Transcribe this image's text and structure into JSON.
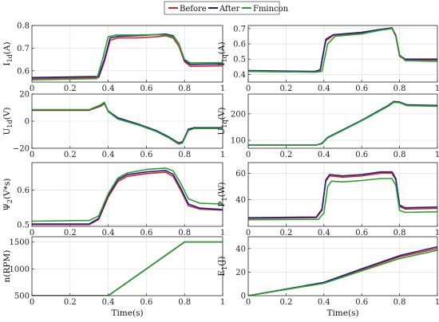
{
  "legend": {
    "placement": "top-center",
    "entries": [
      {
        "name": "Before",
        "color": "#d62728"
      },
      {
        "name": "After",
        "color": "#1f1f8f"
      },
      {
        "name": "Fmincon",
        "color": "#2ca02c"
      }
    ]
  },
  "chart_data": [
    {
      "id": "i1d",
      "type": "line",
      "title": "",
      "ylabel": "I",
      "ylabel_sub": "1d",
      "ylabel_unit": "(A)",
      "xlabel": "",
      "xlim": [
        0,
        1
      ],
      "ylim": [
        0.55,
        0.8
      ],
      "xticks": [
        "0",
        "0.2",
        "0.4",
        "0.6",
        "0.8",
        "1"
      ],
      "yticks": [
        {
          "v": 0.6,
          "t": "0.6"
        },
        {
          "v": 0.7,
          "t": "0.7"
        },
        {
          "v": 0.8,
          "t": "0.8"
        }
      ],
      "grid": true,
      "series": [
        {
          "name": "Before",
          "x": [
            0,
            0.35,
            0.38,
            0.41,
            0.45,
            0.55,
            0.65,
            0.7,
            0.74,
            0.77,
            0.8,
            0.83,
            1
          ],
          "y": [
            0.565,
            0.57,
            0.64,
            0.735,
            0.745,
            0.745,
            0.75,
            0.755,
            0.745,
            0.71,
            0.64,
            0.62,
            0.622
          ]
        },
        {
          "name": "After",
          "x": [
            0,
            0.35,
            0.38,
            0.41,
            0.45,
            0.55,
            0.65,
            0.7,
            0.74,
            0.77,
            0.8,
            0.83,
            1
          ],
          "y": [
            0.57,
            0.575,
            0.65,
            0.745,
            0.752,
            0.755,
            0.76,
            0.762,
            0.755,
            0.72,
            0.645,
            0.628,
            0.63
          ]
        },
        {
          "name": "Fmincon",
          "x": [
            0,
            0.34,
            0.37,
            0.4,
            0.44,
            0.55,
            0.65,
            0.7,
            0.74,
            0.77,
            0.8,
            0.83,
            1
          ],
          "y": [
            0.56,
            0.565,
            0.65,
            0.75,
            0.758,
            0.758,
            0.76,
            0.758,
            0.75,
            0.72,
            0.65,
            0.635,
            0.636
          ]
        }
      ]
    },
    {
      "id": "i1q",
      "type": "line",
      "title": "",
      "ylabel": "I",
      "ylabel_sub": "1q",
      "ylabel_unit": "(A)",
      "xlabel": "",
      "xlim": [
        0,
        1
      ],
      "ylim": [
        0.35,
        0.72
      ],
      "xticks": [
        "0",
        "0.2",
        "0.4",
        "0.6",
        "0.8",
        "1"
      ],
      "yticks": [
        {
          "v": 0.4,
          "t": "0.4"
        },
        {
          "v": 0.5,
          "t": "0.5"
        },
        {
          "v": 0.6,
          "t": "0.6"
        },
        {
          "v": 0.7,
          "t": "0.7"
        }
      ],
      "grid": true,
      "series": [
        {
          "name": "Before",
          "x": [
            0,
            0.35,
            0.38,
            0.41,
            0.45,
            0.6,
            0.7,
            0.76,
            0.78,
            0.8,
            0.83,
            1
          ],
          "y": [
            0.42,
            0.415,
            0.42,
            0.62,
            0.655,
            0.67,
            0.69,
            0.7,
            0.65,
            0.52,
            0.495,
            0.495
          ]
        },
        {
          "name": "After",
          "x": [
            0,
            0.35,
            0.38,
            0.41,
            0.45,
            0.6,
            0.7,
            0.76,
            0.78,
            0.8,
            0.83,
            1
          ],
          "y": [
            0.425,
            0.42,
            0.43,
            0.63,
            0.66,
            0.675,
            0.695,
            0.705,
            0.655,
            0.525,
            0.5,
            0.5
          ]
        },
        {
          "name": "Fmincon",
          "x": [
            0,
            0.36,
            0.39,
            0.42,
            0.46,
            0.6,
            0.7,
            0.76,
            0.78,
            0.8,
            0.83,
            1
          ],
          "y": [
            0.42,
            0.415,
            0.42,
            0.6,
            0.65,
            0.665,
            0.69,
            0.7,
            0.66,
            0.53,
            0.49,
            0.485
          ]
        }
      ]
    },
    {
      "id": "u1d",
      "type": "line",
      "title": "",
      "ylabel": "U",
      "ylabel_sub": "1d",
      "ylabel_unit": "(V)",
      "xlabel": "",
      "xlim": [
        0,
        1
      ],
      "ylim": [
        -20,
        20
      ],
      "xticks": [
        "0",
        "0.2",
        "0.4",
        "0.6",
        "0.8",
        "1"
      ],
      "yticks": [
        {
          "v": -20,
          "t": "−20"
        },
        {
          "v": 0,
          "t": "0"
        },
        {
          "v": 20,
          "t": "20"
        }
      ],
      "grid": true,
      "series": [
        {
          "name": "Before",
          "x": [
            0,
            0.3,
            0.36,
            0.38,
            0.4,
            0.45,
            0.55,
            0.65,
            0.72,
            0.77,
            0.79,
            0.82,
            0.85,
            1
          ],
          "y": [
            8,
            8,
            11,
            13,
            7,
            2,
            -2,
            -7,
            -12,
            -16,
            -15,
            -6,
            -5,
            -5
          ]
        },
        {
          "name": "After",
          "x": [
            0,
            0.3,
            0.36,
            0.38,
            0.4,
            0.45,
            0.55,
            0.65,
            0.72,
            0.77,
            0.79,
            0.82,
            0.85,
            1
          ],
          "y": [
            8.3,
            8.3,
            11.5,
            13.5,
            7.5,
            2.5,
            -1.8,
            -6.8,
            -11.8,
            -16.5,
            -15.5,
            -6,
            -4.8,
            -4.8
          ]
        },
        {
          "name": "Fmincon",
          "x": [
            0,
            0.3,
            0.36,
            0.38,
            0.4,
            0.45,
            0.55,
            0.65,
            0.72,
            0.77,
            0.79,
            0.82,
            0.85,
            1
          ],
          "y": [
            8.5,
            8.5,
            12,
            14,
            7,
            1.5,
            -2.5,
            -7.5,
            -12.5,
            -17,
            -16,
            -7,
            -5.5,
            -5.5
          ]
        }
      ]
    },
    {
      "id": "u1q",
      "type": "line",
      "title": "",
      "ylabel": "U",
      "ylabel_sub": "1q",
      "ylabel_unit": "(V)",
      "xlabel": "",
      "xlim": [
        0,
        1
      ],
      "ylim": [
        70,
        275
      ],
      "xticks": [
        "0",
        "0.2",
        "0.4",
        "0.6",
        "0.8",
        "1"
      ],
      "yticks": [
        {
          "v": 100,
          "t": "100"
        },
        {
          "v": 200,
          "t": "200"
        }
      ],
      "grid": true,
      "series": [
        {
          "name": "Before",
          "x": [
            0,
            0.36,
            0.39,
            0.42,
            0.6,
            0.74,
            0.77,
            0.8,
            0.84,
            1
          ],
          "y": [
            82,
            82,
            88,
            110,
            175,
            230,
            245,
            243,
            232,
            230
          ]
        },
        {
          "name": "After",
          "x": [
            0,
            0.36,
            0.39,
            0.42,
            0.6,
            0.74,
            0.77,
            0.8,
            0.84,
            1
          ],
          "y": [
            82,
            82,
            89,
            111,
            176,
            232,
            247,
            245,
            234,
            232
          ]
        },
        {
          "name": "Fmincon",
          "x": [
            0,
            0.36,
            0.39,
            0.42,
            0.6,
            0.74,
            0.77,
            0.8,
            0.84,
            1
          ],
          "y": [
            82,
            82,
            87,
            109,
            174,
            229,
            244,
            242,
            231,
            229
          ]
        }
      ]
    },
    {
      "id": "psi2",
      "type": "line",
      "title": "",
      "ylabel": "Ψ",
      "ylabel_sub": "2",
      "ylabel_unit": "(V*s)",
      "xlabel": "",
      "xlim": [
        0,
        1
      ],
      "ylim": [
        0.495,
        0.68
      ],
      "xticks": [
        "0",
        "0.2",
        "0.4",
        "0.6",
        "0.8",
        "1"
      ],
      "yticks": [
        {
          "v": 0.5,
          "t": "0.5"
        },
        {
          "v": 0.6,
          "t": "0.6"
        }
      ],
      "grid": true,
      "series": [
        {
          "name": "Before",
          "x": [
            0,
            0.3,
            0.35,
            0.4,
            0.45,
            0.5,
            0.6,
            0.7,
            0.74,
            0.78,
            0.82,
            0.88,
            1
          ],
          "y": [
            0.5,
            0.5,
            0.515,
            0.58,
            0.625,
            0.64,
            0.648,
            0.652,
            0.64,
            0.6,
            0.555,
            0.545,
            0.542
          ]
        },
        {
          "name": "After",
          "x": [
            0,
            0.3,
            0.35,
            0.4,
            0.45,
            0.5,
            0.6,
            0.7,
            0.74,
            0.78,
            0.82,
            0.88,
            1
          ],
          "y": [
            0.502,
            0.502,
            0.518,
            0.585,
            0.63,
            0.645,
            0.653,
            0.657,
            0.646,
            0.606,
            0.56,
            0.548,
            0.544
          ]
        },
        {
          "name": "Fmincon",
          "x": [
            0,
            0.3,
            0.35,
            0.4,
            0.45,
            0.5,
            0.6,
            0.7,
            0.74,
            0.78,
            0.82,
            0.88,
            1
          ],
          "y": [
            0.51,
            0.512,
            0.525,
            0.59,
            0.635,
            0.65,
            0.66,
            0.664,
            0.656,
            0.62,
            0.575,
            0.562,
            0.56
          ]
        }
      ]
    },
    {
      "id": "p1",
      "type": "line",
      "title": "",
      "ylabel": "P",
      "ylabel_sub": "1",
      "ylabel_unit": "(W)",
      "xlabel": "",
      "xlim": [
        0,
        1
      ],
      "ylim": [
        20,
        68
      ],
      "xticks": [
        "0",
        "0.2",
        "0.4",
        "0.6",
        "0.8",
        "1"
      ],
      "yticks": [
        {
          "v": 40,
          "t": "40"
        },
        {
          "v": 60,
          "t": "60"
        }
      ],
      "grid": true,
      "series": [
        {
          "name": "Before",
          "x": [
            0,
            0.36,
            0.39,
            0.41,
            0.43,
            0.5,
            0.6,
            0.7,
            0.76,
            0.78,
            0.8,
            0.83,
            1
          ],
          "y": [
            26,
            26.5,
            32,
            54,
            58,
            57,
            58,
            60,
            60,
            55,
            35,
            33,
            33.5
          ]
        },
        {
          "name": "After",
          "x": [
            0,
            0.36,
            0.39,
            0.41,
            0.43,
            0.5,
            0.6,
            0.7,
            0.76,
            0.78,
            0.8,
            0.83,
            1
          ],
          "y": [
            26.5,
            27,
            33,
            55,
            59,
            58,
            59,
            61,
            61,
            56,
            36,
            34,
            34.5
          ]
        },
        {
          "name": "Fmincon",
          "x": [
            0,
            0.37,
            0.4,
            0.42,
            0.44,
            0.5,
            0.6,
            0.7,
            0.76,
            0.78,
            0.8,
            0.83,
            1
          ],
          "y": [
            25,
            25.2,
            30,
            50,
            54,
            53.5,
            54.5,
            56,
            56,
            51,
            32,
            30.5,
            31
          ]
        }
      ]
    },
    {
      "id": "n",
      "type": "line",
      "title": "",
      "ylabel": "n(RPM)",
      "ylabel_sub": "",
      "ylabel_unit": "",
      "xlabel": "Time(s)",
      "xlim": [
        0,
        1
      ],
      "ylim": [
        500,
        1600
      ],
      "xticks": [
        "0",
        "0.2",
        "0.4",
        "0.6",
        "0.8",
        "1"
      ],
      "yticks": [
        {
          "v": 500,
          "t": "500"
        },
        {
          "v": 1000,
          "t": "1000"
        },
        {
          "v": 1500,
          "t": "1500"
        }
      ],
      "grid": true,
      "series": [
        {
          "name": "Before",
          "x": [
            0,
            0.4,
            0.8,
            1
          ],
          "y": [
            500,
            500,
            1500,
            1500
          ]
        },
        {
          "name": "After",
          "x": [
            0,
            0.4,
            0.8,
            1
          ],
          "y": [
            500,
            500,
            1500,
            1500
          ]
        },
        {
          "name": "Fmincon",
          "x": [
            0,
            0.4,
            0.8,
            1
          ],
          "y": [
            500,
            500,
            1500,
            1500
          ]
        }
      ]
    },
    {
      "id": "e1",
      "type": "line",
      "title": "",
      "ylabel": "E",
      "ylabel_sub": "1",
      "ylabel_unit": "(J)",
      "xlabel": "Time(s)",
      "xlim": [
        0,
        1
      ],
      "ylim": [
        0,
        50
      ],
      "xticks": [
        "0",
        "0.2",
        "0.4",
        "0.6",
        "0.8",
        "1"
      ],
      "yticks": [
        {
          "v": 0,
          "t": "0"
        },
        {
          "v": 20,
          "t": "20"
        },
        {
          "v": 40,
          "t": "40"
        }
      ],
      "grid": true,
      "series": [
        {
          "name": "Before",
          "x": [
            0,
            0.2,
            0.4,
            0.6,
            0.8,
            1
          ],
          "y": [
            0,
            5.5,
            11,
            22,
            33,
            40
          ]
        },
        {
          "name": "After",
          "x": [
            0,
            0.2,
            0.4,
            0.6,
            0.8,
            1
          ],
          "y": [
            0,
            5.6,
            11.3,
            22.8,
            34,
            41.5
          ]
        },
        {
          "name": "Fmincon",
          "x": [
            0,
            0.2,
            0.4,
            0.6,
            0.8,
            1
          ],
          "y": [
            0,
            5.3,
            10.5,
            21,
            31.5,
            38.5
          ]
        }
      ]
    }
  ]
}
